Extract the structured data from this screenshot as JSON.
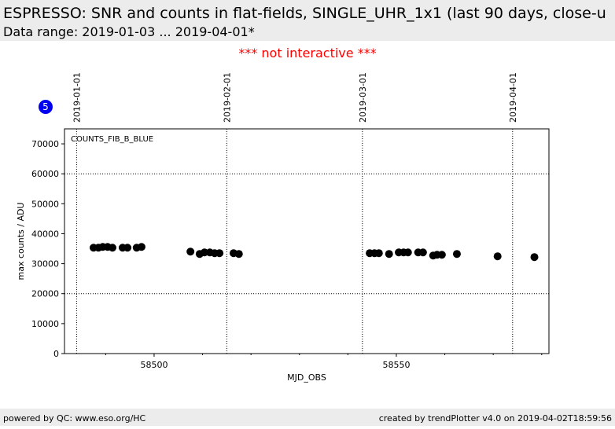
{
  "header": {
    "title": "ESPRESSO: SNR and counts in flat-fields, SINGLE_UHR_1x1 (last 90 days, close-u",
    "subtitle": "Data range: 2019-01-03 ... 2019-04-01*",
    "notice": "*** not interactive ***",
    "badge": "5"
  },
  "chart_data": {
    "type": "scatter",
    "x_label": "MJD_OBS",
    "y_label": "max counts / ADU",
    "xlim": [
      58481.5,
      58581.5
    ],
    "xticks": [
      58500,
      58550
    ],
    "xminor_ticks": [
      58490,
      58510,
      58520,
      58530,
      58540,
      58560,
      58570,
      58580
    ],
    "ylim": [
      0,
      75000
    ],
    "yticks": [
      0,
      10000,
      20000,
      30000,
      40000,
      50000,
      60000,
      70000
    ],
    "hlines": [
      20000,
      60000
    ],
    "date_markers": [
      {
        "value": 58484,
        "label": "2019-01-01"
      },
      {
        "value": 58515,
        "label": "2019-02-01"
      },
      {
        "value": 58543,
        "label": "2019-03-01"
      },
      {
        "value": 58574,
        "label": "2019-04-01"
      }
    ],
    "series": [
      {
        "name": "COUNTS_FIB_B_BLUE",
        "color": "#000000",
        "x": [
          58487.5,
          58488.5,
          58489.4,
          58490.4,
          58491.4,
          58493.5,
          58494.5,
          58496.4,
          58497.4,
          58507.5,
          58509.4,
          58510.4,
          58511.5,
          58512.5,
          58513.5,
          58516.4,
          58517.5,
          58544.5,
          58545.5,
          58546.4,
          58548.5,
          58550.5,
          58551.5,
          58552.4,
          58554.5,
          58555.5,
          58557.6,
          58558.4,
          58559.4,
          58562.5,
          58570.9,
          58578.5
        ],
        "values": [
          35340,
          35340,
          35600,
          35600,
          35340,
          35340,
          35340,
          35340,
          35600,
          34030,
          33250,
          33770,
          33770,
          33510,
          33510,
          33510,
          33250,
          33510,
          33510,
          33510,
          33250,
          33770,
          33770,
          33770,
          33770,
          33770,
          32720,
          32980,
          32980,
          33250,
          32460,
          32200
        ]
      }
    ]
  },
  "footer": {
    "left": "powered by QC: www.eso.org/HC",
    "right": "created by trendPlotter v4.0 on 2019-04-02T18:59:56"
  }
}
